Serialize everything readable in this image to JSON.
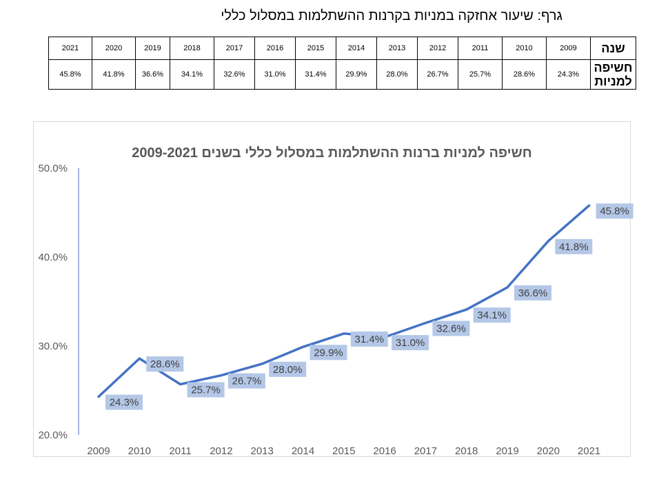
{
  "heading": "גרף: שיעור אחזקה במניות בקרנות ההשתלמות במסלול כללי",
  "table": {
    "year_header": "שנה",
    "value_header": "חשיפה למניות",
    "years": [
      "2009",
      "2010",
      "2011",
      "2012",
      "2013",
      "2014",
      "2015",
      "2016",
      "2017",
      "2018",
      "2019",
      "2020",
      "2021"
    ],
    "values": [
      "24.3%",
      "28.6%",
      "25.7%",
      "26.7%",
      "28.0%",
      "29.9%",
      "31.4%",
      "31.0%",
      "32.6%",
      "34.1%",
      "36.6%",
      "41.8%",
      "45.8%"
    ]
  },
  "chart_data": {
    "type": "line",
    "title": "חשיפה למניות ברנות ההשתלמות במסלול כללי בשנים 2009-2021",
    "categories": [
      "2009",
      "2010",
      "2011",
      "2012",
      "2013",
      "2014",
      "2015",
      "2016",
      "2017",
      "2018",
      "2019",
      "2020",
      "2021"
    ],
    "series": [
      {
        "values": [
          24.3,
          28.6,
          25.7,
          26.7,
          28.0,
          29.9,
          31.4,
          31.0,
          32.6,
          34.1,
          36.6,
          41.8,
          45.8
        ],
        "color": "#4472c4"
      }
    ],
    "data_labels": [
      "24.3%",
      "28.6%",
      "25.7%",
      "26.7%",
      "28.0%",
      "29.9%",
      "31.4%",
      "31.0%",
      "32.6%",
      "34.1%",
      "36.6%",
      "41.8%",
      "45.8%"
    ],
    "ylim": [
      20,
      50
    ],
    "yticks": [
      20,
      30,
      40,
      50
    ],
    "ytick_labels": [
      "20.0%",
      "30.0%",
      "40.0%",
      "50.0%"
    ],
    "label_box_color": "#b4c7e7",
    "grid": false,
    "legend": "none"
  }
}
